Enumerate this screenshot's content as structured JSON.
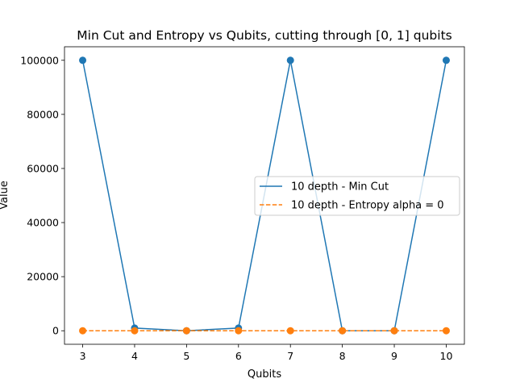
{
  "chart_data": {
    "type": "line",
    "title": "Min Cut and Entropy vs Qubits, cutting through [0, 1] qubits",
    "xlabel": "Qubits",
    "ylabel": "Value",
    "x": [
      3,
      4,
      5,
      6,
      7,
      8,
      9,
      10
    ],
    "xlim": [
      2.65,
      10.35
    ],
    "ylim": [
      -5000,
      105000
    ],
    "xticks": [
      3,
      4,
      5,
      6,
      7,
      8,
      9,
      10
    ],
    "yticks": [
      0,
      20000,
      40000,
      60000,
      80000,
      100000
    ],
    "grid": false,
    "legend_position": "center-right",
    "series": [
      {
        "name": "10 depth - Min Cut",
        "values": [
          100000,
          1000,
          0,
          1000,
          100000,
          0,
          0,
          100000
        ],
        "color": "#1f77b4",
        "line_style": "solid",
        "marker": "circle"
      },
      {
        "name": "10 depth - Entropy alpha = 0",
        "values": [
          0,
          0,
          0,
          0,
          0,
          0,
          0,
          0
        ],
        "color": "#ff7f0e",
        "line_style": "dashed",
        "marker": "circle"
      }
    ]
  }
}
